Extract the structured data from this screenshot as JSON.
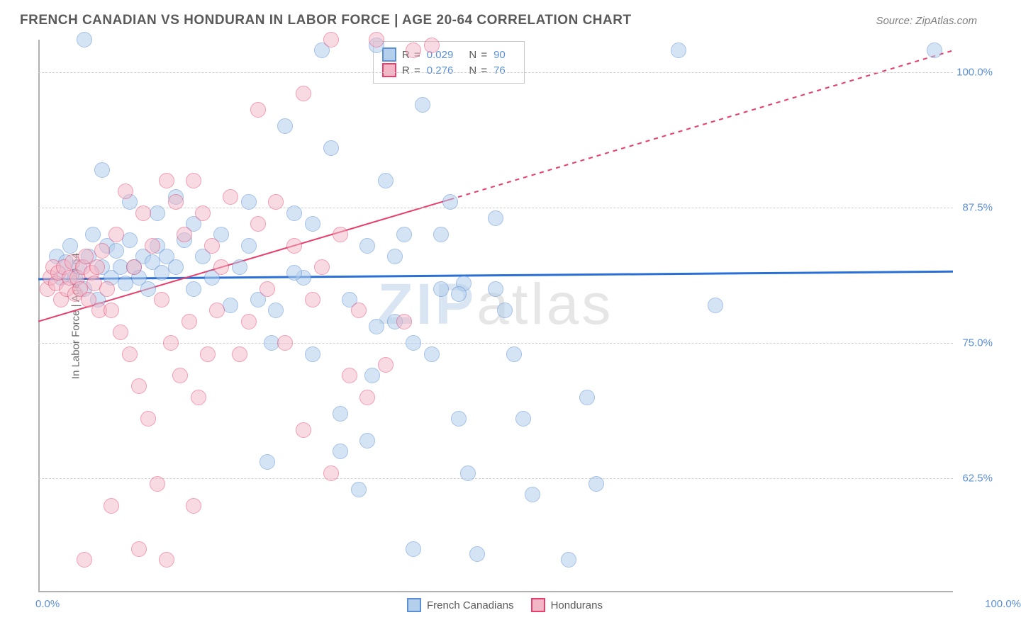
{
  "header": {
    "title": "FRENCH CANADIAN VS HONDURAN IN LABOR FORCE | AGE 20-64 CORRELATION CHART",
    "source": "Source: ZipAtlas.com"
  },
  "chart": {
    "type": "scatter",
    "ylabel": "In Labor Force | Age 20-64",
    "xlim": [
      0,
      100
    ],
    "ylim": [
      52,
      103
    ],
    "x_ticks": {
      "min_label": "0.0%",
      "max_label": "100.0%"
    },
    "y_grid": [
      {
        "value": 62.5,
        "label": "62.5%"
      },
      {
        "value": 75.0,
        "label": "75.0%"
      },
      {
        "value": 87.5,
        "label": "87.5%"
      },
      {
        "value": 100.0,
        "label": "100.0%"
      }
    ],
    "watermark": {
      "text1": "ZIP",
      "text2": "atlas"
    },
    "point_radius": 11,
    "series": [
      {
        "name": "French Canadians",
        "fill": "#b3cfec",
        "stroke": "#5b8fd6",
        "fill_opacity": 0.55,
        "legend_fill": "#b3cfec",
        "legend_stroke": "#5b8fd6",
        "R": "0.029",
        "N": "90",
        "trend": {
          "x1": 0,
          "y1": 80.9,
          "x2": 100,
          "y2": 81.6,
          "color": "#2a6fd6",
          "width": 3,
          "dash": null,
          "solid_until": 100
        },
        "points": [
          [
            2,
            83
          ],
          [
            2.5,
            81
          ],
          [
            3,
            82.5
          ],
          [
            3.5,
            84
          ],
          [
            4,
            81
          ],
          [
            4.5,
            82
          ],
          [
            5,
            80
          ],
          [
            5.5,
            83
          ],
          [
            6,
            85
          ],
          [
            6.5,
            79
          ],
          [
            7,
            82
          ],
          [
            7.5,
            84
          ],
          [
            8,
            81
          ],
          [
            8.5,
            83.5
          ],
          [
            9,
            82
          ],
          [
            9.5,
            80.5
          ],
          [
            10,
            84.5
          ],
          [
            10.5,
            82
          ],
          [
            11,
            81
          ],
          [
            11.5,
            83
          ],
          [
            12,
            80
          ],
          [
            12.5,
            82.5
          ],
          [
            13,
            84
          ],
          [
            13.5,
            81.5
          ],
          [
            14,
            83
          ],
          [
            15,
            82
          ],
          [
            16,
            84.5
          ],
          [
            17,
            80
          ],
          [
            18,
            83
          ],
          [
            19,
            81
          ],
          [
            20,
            85
          ],
          [
            21,
            78.5
          ],
          [
            22,
            82
          ],
          [
            23,
            84
          ],
          [
            24,
            79
          ],
          [
            25,
            64
          ],
          [
            25.5,
            75
          ],
          [
            27,
            95
          ],
          [
            28,
            87
          ],
          [
            29,
            81
          ],
          [
            30,
            86
          ],
          [
            31,
            102
          ],
          [
            32,
            93
          ],
          [
            33,
            65
          ],
          [
            34,
            79
          ],
          [
            35,
            61.5
          ],
          [
            36,
            84
          ],
          [
            36.5,
            72
          ],
          [
            37,
            102.5
          ],
          [
            38,
            90
          ],
          [
            39,
            77
          ],
          [
            40,
            85
          ],
          [
            41,
            56
          ],
          [
            42,
            97
          ],
          [
            43,
            74
          ],
          [
            44,
            80
          ],
          [
            45,
            88
          ],
          [
            46,
            68
          ],
          [
            47,
            63
          ],
          [
            46.5,
            80.5
          ],
          [
            48,
            55.5
          ],
          [
            50,
            86.5
          ],
          [
            51,
            78
          ],
          [
            53,
            68
          ],
          [
            54,
            61
          ],
          [
            58,
            55
          ],
          [
            60,
            70
          ],
          [
            61,
            62
          ],
          [
            70,
            102
          ],
          [
            74,
            78.5
          ],
          [
            98,
            102
          ],
          [
            5,
            103
          ],
          [
            7,
            91
          ],
          [
            10,
            88
          ],
          [
            13,
            87
          ],
          [
            15,
            88.5
          ],
          [
            17,
            86
          ],
          [
            23,
            88
          ],
          [
            26,
            78
          ],
          [
            28,
            81.5
          ],
          [
            30,
            74
          ],
          [
            33,
            68.5
          ],
          [
            36,
            66
          ],
          [
            37,
            76.5
          ],
          [
            39,
            83
          ],
          [
            41,
            75
          ],
          [
            44,
            85
          ],
          [
            46,
            79.5
          ],
          [
            50,
            80
          ],
          [
            52,
            74
          ]
        ]
      },
      {
        "name": "Hondurans",
        "fill": "#f2b6c6",
        "stroke": "#e83e6b",
        "fill_opacity": 0.5,
        "legend_fill": "#f2b6c6",
        "legend_stroke": "#e83e6b",
        "R": "0.276",
        "N": "76",
        "trend": {
          "x1": 0,
          "y1": 77.0,
          "x2": 100,
          "y2": 102.0,
          "color": "#e83e6b",
          "width": 2,
          "dash": "6,6",
          "solid_until": 45
        },
        "points": [
          [
            1,
            80
          ],
          [
            1.3,
            81
          ],
          [
            1.6,
            82
          ],
          [
            1.9,
            80.5
          ],
          [
            2.2,
            81.5
          ],
          [
            2.5,
            79
          ],
          [
            2.8,
            82
          ],
          [
            3.1,
            80
          ],
          [
            3.4,
            81
          ],
          [
            3.7,
            82.5
          ],
          [
            4,
            79.5
          ],
          [
            4.3,
            81
          ],
          [
            4.6,
            80
          ],
          [
            4.9,
            82
          ],
          [
            5.2,
            83
          ],
          [
            5.5,
            79
          ],
          [
            5.8,
            81.5
          ],
          [
            6.1,
            80.5
          ],
          [
            6.4,
            82
          ],
          [
            6.7,
            78
          ],
          [
            7,
            83.5
          ],
          [
            7.5,
            80
          ],
          [
            8,
            78
          ],
          [
            8.5,
            85
          ],
          [
            9,
            76
          ],
          [
            9.5,
            89
          ],
          [
            10,
            74
          ],
          [
            10.5,
            82
          ],
          [
            11,
            71
          ],
          [
            11.5,
            87
          ],
          [
            12,
            68
          ],
          [
            12.5,
            84
          ],
          [
            13,
            62
          ],
          [
            13.5,
            79
          ],
          [
            14,
            90
          ],
          [
            14.5,
            75
          ],
          [
            15,
            88
          ],
          [
            15.5,
            72
          ],
          [
            16,
            85
          ],
          [
            16.5,
            77
          ],
          [
            17,
            90
          ],
          [
            17.5,
            70
          ],
          [
            18,
            87
          ],
          [
            18.5,
            74
          ],
          [
            19,
            84
          ],
          [
            19.5,
            78
          ],
          [
            20,
            82
          ],
          [
            21,
            88.5
          ],
          [
            22,
            74
          ],
          [
            23,
            77
          ],
          [
            24,
            86
          ],
          [
            25,
            80
          ],
          [
            26,
            88
          ],
          [
            27,
            75
          ],
          [
            28,
            84
          ],
          [
            29,
            67
          ],
          [
            30,
            79
          ],
          [
            31,
            82
          ],
          [
            32,
            63
          ],
          [
            33,
            85
          ],
          [
            34,
            72
          ],
          [
            35,
            78
          ],
          [
            36,
            70
          ],
          [
            38,
            73
          ],
          [
            40,
            77
          ],
          [
            5,
            55
          ],
          [
            8,
            60
          ],
          [
            11,
            56
          ],
          [
            14,
            55
          ],
          [
            17,
            60
          ],
          [
            24,
            96.5
          ],
          [
            29,
            98
          ],
          [
            32,
            103
          ],
          [
            37,
            103
          ],
          [
            41,
            102
          ],
          [
            43,
            102.5
          ]
        ]
      }
    ]
  },
  "bottom_legend": [
    {
      "label": "French Canadians",
      "fill": "#b3cfec",
      "stroke": "#5b8fd6"
    },
    {
      "label": "Hondurans",
      "fill": "#f2b6c6",
      "stroke": "#e83e6b"
    }
  ]
}
